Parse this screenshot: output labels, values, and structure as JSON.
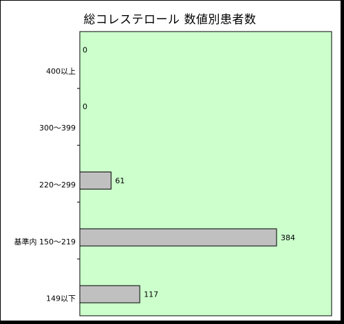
{
  "chart_data": {
    "type": "bar",
    "orientation": "horizontal",
    "title": "総コレステロール 数値別患者数",
    "categories": [
      "400以上",
      "300～399",
      "220～299",
      "基準内 150～219",
      "149以下"
    ],
    "values": [
      0,
      0,
      61,
      384,
      117
    ],
    "data_labels": [
      "0",
      "0",
      "61",
      "384",
      "117"
    ],
    "xlim": [
      0,
      500
    ],
    "xlabel": "",
    "ylabel": "",
    "grid": false,
    "legend": "none",
    "colors": {
      "plot_background": "#ccffcc",
      "bar_fill": "#c0c0c0",
      "bar_stroke": "#000000"
    }
  }
}
